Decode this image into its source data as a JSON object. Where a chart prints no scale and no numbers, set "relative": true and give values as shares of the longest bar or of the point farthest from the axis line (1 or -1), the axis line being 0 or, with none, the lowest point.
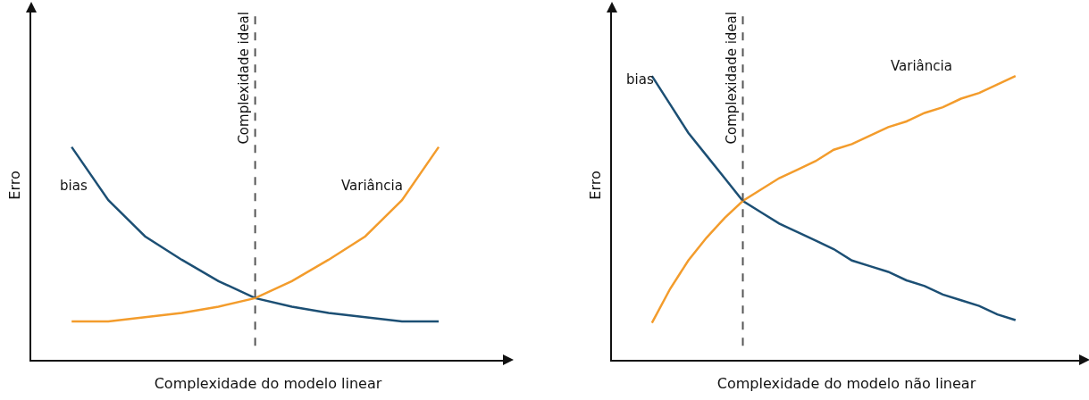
{
  "chart_data": [
    {
      "type": "line",
      "relative": true,
      "xlabel": "Complexidade do modelo linear",
      "ylabel": "Erro",
      "legend": false,
      "grid": false,
      "marker": "none",
      "line_style": "solid",
      "categories": [
        null,
        null,
        null,
        null,
        null,
        null,
        null,
        null,
        null,
        null,
        null
      ],
      "series": [
        {
          "name": "bias",
          "color": "#1c4f74",
          "values": [
            1.0,
            0.75,
            0.58,
            0.47,
            0.37,
            0.29,
            0.25,
            0.22,
            0.2,
            0.18,
            0.18
          ]
        },
        {
          "name": "Variância",
          "color": "#f39c2c",
          "values": [
            0.18,
            0.18,
            0.2,
            0.22,
            0.25,
            0.29,
            0.37,
            0.47,
            0.58,
            0.75,
            1.0
          ]
        }
      ],
      "annotations": [
        "Complexidade ideal"
      ]
    },
    {
      "type": "line",
      "relative": true,
      "xlabel": "Complexidade do modelo não linear",
      "ylabel": "Erro",
      "legend": false,
      "grid": false,
      "marker": "none",
      "line_style": "solid",
      "categories": [
        null,
        null,
        null,
        null,
        null,
        null,
        null,
        null,
        null,
        null,
        null,
        null,
        null,
        null,
        null,
        null,
        null,
        null,
        null,
        null,
        null
      ],
      "series": [
        {
          "name": "bias",
          "color": "#1c4f74",
          "values": [
            1.0,
            0.9,
            0.8,
            0.72,
            0.64,
            0.56,
            0.52,
            0.48,
            0.45,
            0.42,
            0.39,
            0.35,
            0.33,
            0.31,
            0.28,
            0.26,
            0.23,
            0.21,
            0.19,
            0.16,
            0.14
          ]
        },
        {
          "name": "Variância",
          "color": "#f39c2c",
          "values": [
            0.13,
            0.25,
            0.35,
            0.43,
            0.5,
            0.56,
            0.6,
            0.64,
            0.67,
            0.7,
            0.74,
            0.76,
            0.79,
            0.82,
            0.84,
            0.87,
            0.89,
            0.92,
            0.94,
            0.97,
            1.0
          ]
        }
      ],
      "annotations": [
        "Complexidade ideal"
      ]
    }
  ]
}
